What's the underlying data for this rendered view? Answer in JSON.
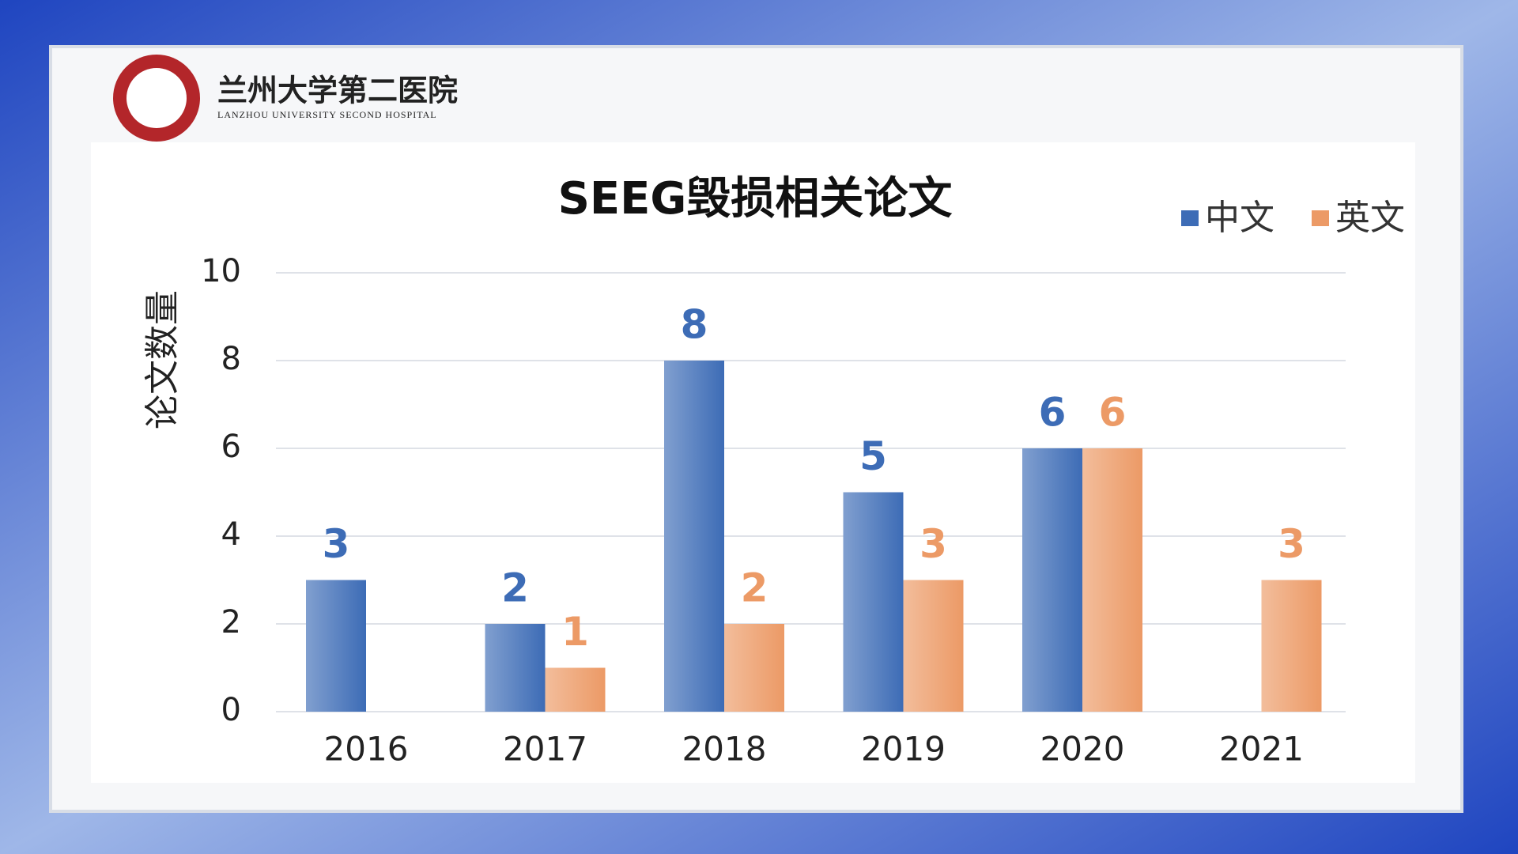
{
  "header": {
    "title": "兰州大学第二医院",
    "subtitle": "LANZHOU UNIVERSITY SECOND HOSPITAL"
  },
  "chart_data": {
    "type": "bar",
    "title": "SEEG毁损相关论文",
    "y_label": "论文数量",
    "categories": [
      "2016",
      "2017",
      "2018",
      "2019",
      "2020",
      "2021"
    ],
    "series": [
      {
        "name": "中文",
        "color": "#3d6cb6",
        "values": [
          3,
          2,
          8,
          5,
          6,
          null
        ]
      },
      {
        "name": "英文",
        "color": "#ec9a66",
        "values": [
          null,
          1,
          2,
          3,
          6,
          3
        ]
      }
    ],
    "ylim": [
      0,
      10
    ],
    "yticks": [
      0,
      2,
      4,
      6,
      8,
      10
    ],
    "grid": true,
    "legend": "top-right"
  }
}
